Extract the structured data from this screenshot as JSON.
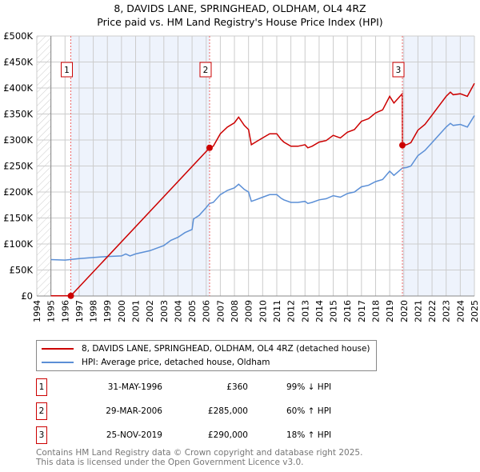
{
  "chart_data": {
    "type": "line",
    "title": "8, DAVIDS LANE, SPRINGHEAD, OLDHAM, OL4 4RZ",
    "subtitle": "Price paid vs. HM Land Registry's House Price Index (HPI)",
    "xlim": [
      1994,
      2025
    ],
    "ylim": [
      0,
      500000
    ],
    "yticks": [
      {
        "v": 0,
        "label": "£0"
      },
      {
        "v": 50000,
        "label": "£50K"
      },
      {
        "v": 100000,
        "label": "£100K"
      },
      {
        "v": 150000,
        "label": "£150K"
      },
      {
        "v": 200000,
        "label": "£200K"
      },
      {
        "v": 250000,
        "label": "£250K"
      },
      {
        "v": 300000,
        "label": "£300K"
      },
      {
        "v": 350000,
        "label": "£350K"
      },
      {
        "v": 400000,
        "label": "£400K"
      },
      {
        "v": 450000,
        "label": "£450K"
      },
      {
        "v": 500000,
        "label": "£500K"
      }
    ],
    "xticks": [
      "1994",
      "1995",
      "1996",
      "1997",
      "1998",
      "1999",
      "2000",
      "2001",
      "2002",
      "2003",
      "2004",
      "2005",
      "2006",
      "2007",
      "2008",
      "2009",
      "2010",
      "2011",
      "2012",
      "2013",
      "2014",
      "2015",
      "2016",
      "2017",
      "2018",
      "2019",
      "2020",
      "2021",
      "2022",
      "2023",
      "2024",
      "2025"
    ],
    "grid": true,
    "series": [
      {
        "name": "8, DAVIDS LANE, SPRINGHEAD, OLDHAM, OL4 4RZ (detached house)",
        "color": "#cc0000",
        "x": [
          1995,
          1996.41,
          2006.24,
          2006.5,
          2007,
          2007.5,
          2008,
          2008.3,
          2008.7,
          2009,
          2009.2,
          2009.5,
          2010,
          2010.5,
          2011,
          2011.3,
          2011.5,
          2012,
          2012.5,
          2013,
          2013.2,
          2013.5,
          2014,
          2014.5,
          2015,
          2015.5,
          2016,
          2016.5,
          2017,
          2017.5,
          2018,
          2018.5,
          2019,
          2019.3,
          2019.89,
          2019.9,
          2020.2,
          2020.5,
          2021,
          2021.5,
          2022,
          2022.5,
          2023,
          2023.3,
          2023.5,
          2024,
          2024.5,
          2025
        ],
        "y": [
          360,
          360,
          285000,
          288000,
          312000,
          325000,
          333000,
          344000,
          328000,
          320000,
          291000,
          296000,
          304000,
          312000,
          312000,
          301000,
          296000,
          288000,
          288000,
          291000,
          285000,
          288000,
          296000,
          299000,
          309000,
          304000,
          315000,
          320000,
          336000,
          341000,
          352000,
          358000,
          384000,
          371000,
          389000,
          290000,
          291000,
          295000,
          319000,
          330000,
          348000,
          366000,
          384000,
          392000,
          387000,
          389000,
          384000,
          409000
        ]
      },
      {
        "name": "HPI: Average price, detached house, Oldham",
        "color": "#5b8fd6",
        "x": [
          1995,
          1996,
          1997,
          1998,
          1999,
          2000,
          2000.3,
          2000.6,
          2001,
          2002,
          2003,
          2003.5,
          2004,
          2004.5,
          2005,
          2005.1,
          2005.5,
          2006,
          2006.24,
          2006.5,
          2007,
          2007.5,
          2008,
          2008.3,
          2008.7,
          2009,
          2009.2,
          2009.5,
          2010,
          2010.5,
          2011,
          2011.3,
          2011.5,
          2012,
          2012.5,
          2013,
          2013.2,
          2013.5,
          2014,
          2014.5,
          2015,
          2015.5,
          2016,
          2016.5,
          2017,
          2017.5,
          2018,
          2018.5,
          2019,
          2019.3,
          2019.9,
          2020.2,
          2020.5,
          2021,
          2021.5,
          2022,
          2022.5,
          2023,
          2023.3,
          2023.5,
          2024,
          2024.5,
          2025
        ],
        "y": [
          70000,
          69000,
          72000,
          74000,
          76000,
          77000,
          81000,
          77000,
          81000,
          87000,
          97000,
          107000,
          113000,
          122000,
          128000,
          148000,
          155000,
          170000,
          178000,
          180000,
          195000,
          203000,
          208000,
          215000,
          205000,
          200000,
          182000,
          185000,
          190000,
          195000,
          195000,
          188000,
          185000,
          180000,
          180000,
          182000,
          178000,
          180000,
          185000,
          187000,
          193000,
          190000,
          197000,
          200000,
          210000,
          213000,
          220000,
          224000,
          240000,
          232000,
          246000,
          247000,
          250000,
          270000,
          280000,
          295000,
          310000,
          325000,
          332000,
          328000,
          330000,
          325000,
          347000
        ]
      }
    ],
    "sales": [
      {
        "label": "1",
        "date": "31-MAY-1996",
        "price": "£360",
        "hpi": "99% ↓ HPI",
        "x": 1996.41,
        "y": 360
      },
      {
        "label": "2",
        "date": "29-MAR-2006",
        "price": "£285,000",
        "hpi": "60% ↑ HPI",
        "x": 2006.24,
        "y": 285000
      },
      {
        "label": "3",
        "date": "25-NOV-2019",
        "price": "£290,000",
        "hpi": "18% ↑ HPI",
        "x": 2019.9,
        "y": 290000
      }
    ],
    "shaded_ranges": [
      [
        1996.41,
        2006.24
      ],
      [
        2019.9,
        2025
      ]
    ]
  },
  "footer": {
    "line1": "Contains HM Land Registry data © Crown copyright and database right 2025.",
    "line2": "This data is licensed under the Open Government Licence v3.0."
  }
}
